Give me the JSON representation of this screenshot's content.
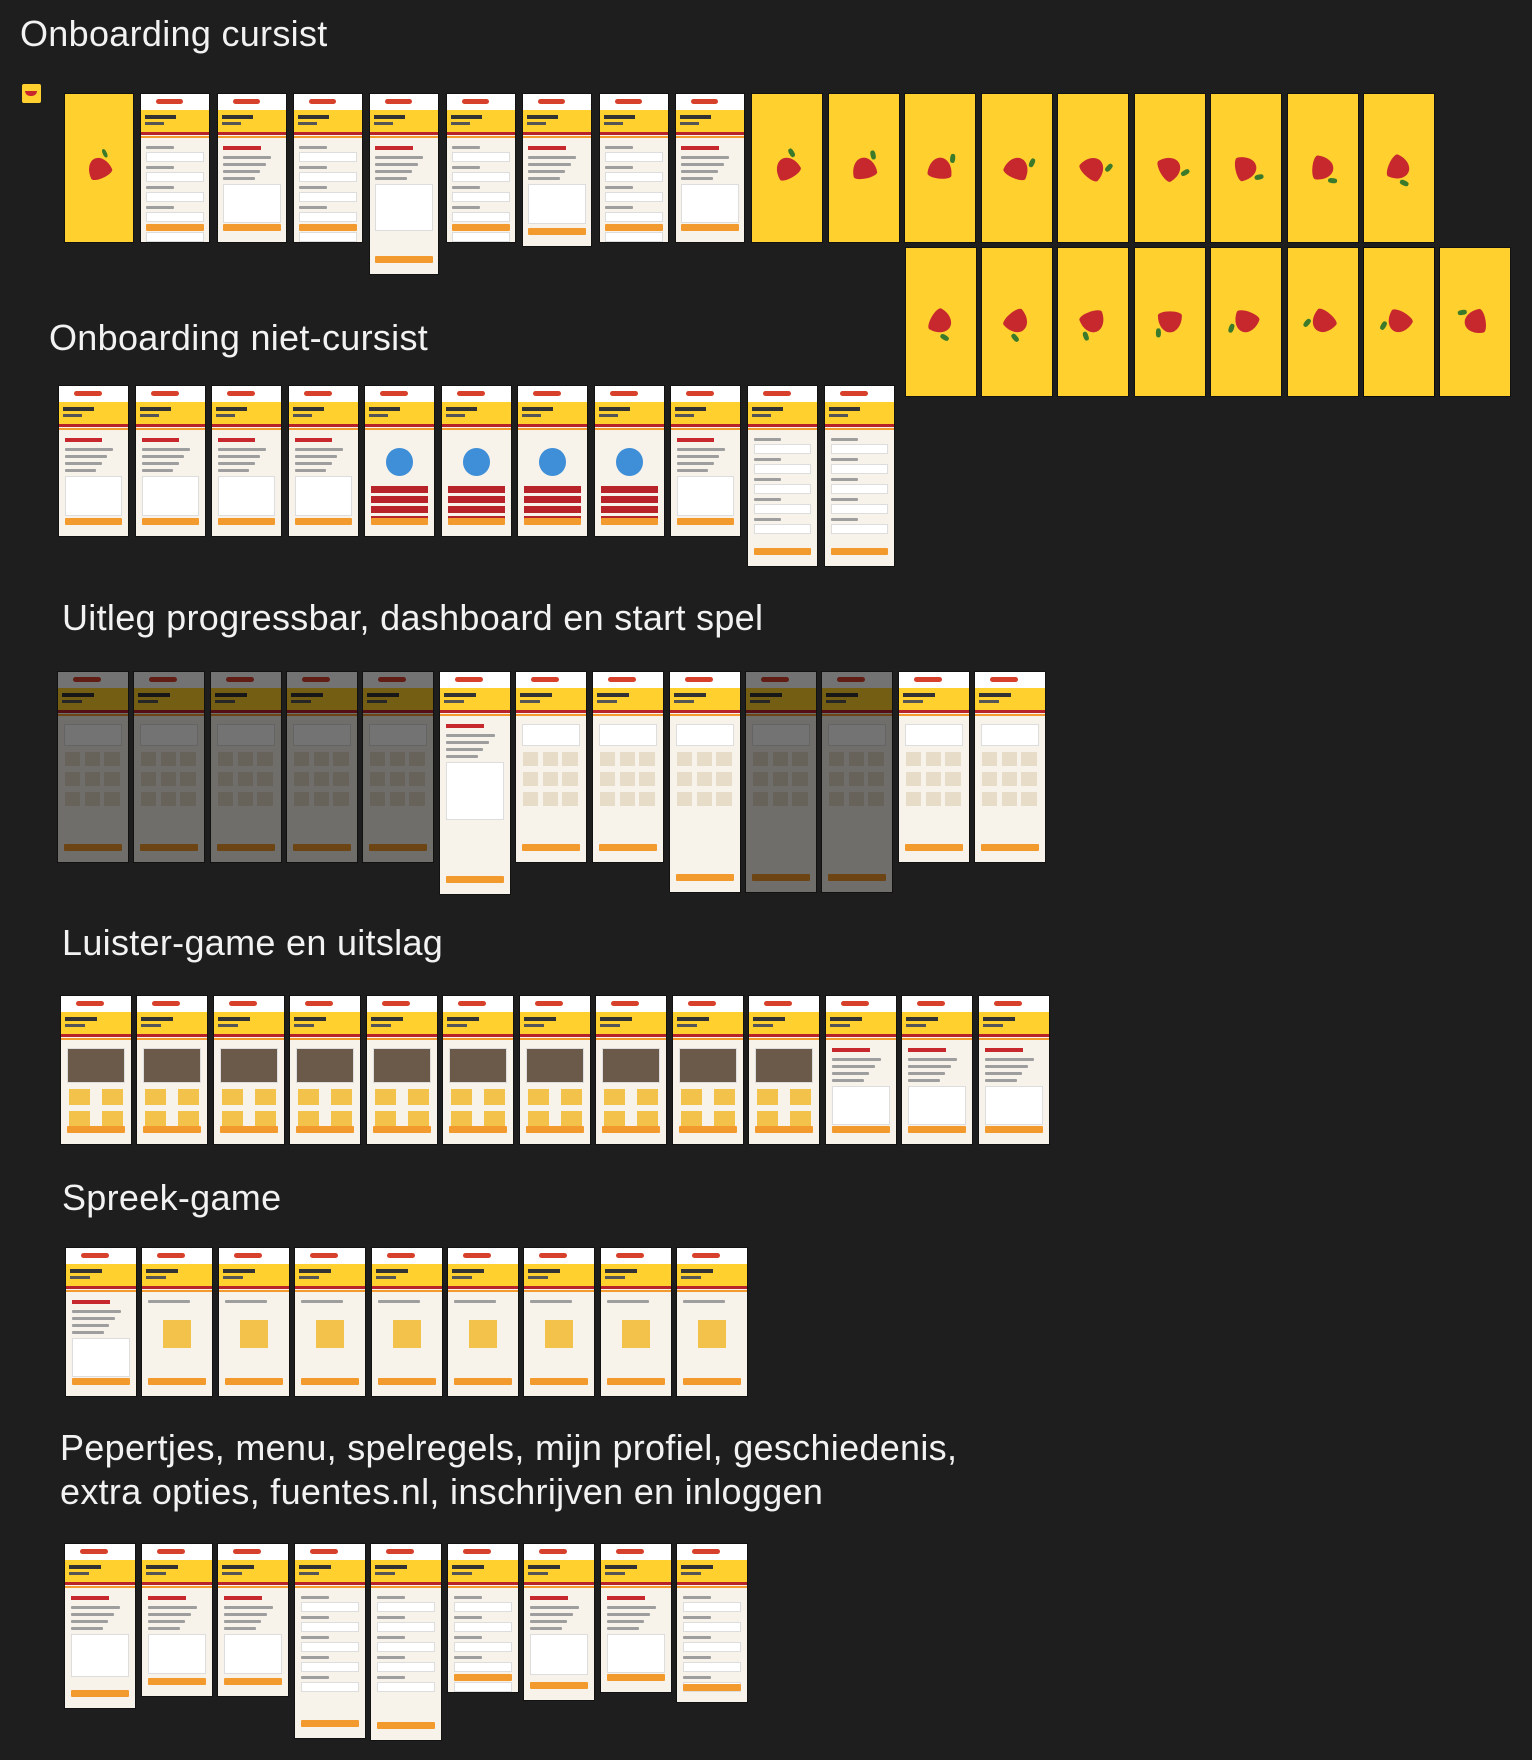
{
  "sections": {
    "onboarding_cursist": "Onboarding cursist",
    "onboarding_niet_cursist": "Onboarding niet-cursist",
    "uitleg": "Uitleg progressbar, dashboard en start spel",
    "luister": "Luister-game en uitslag",
    "spreek": "Spreek-game",
    "overig_line1": "Pepertjes, menu, spelregels, mijn profiel, geschiedenis,",
    "overig_line2": "extra opties, fuentes.nl, inschrijven en inloggen"
  },
  "colors": {
    "canvas": "#1e1e1e",
    "brand_yellow": "#ffd02e",
    "brand_red": "#b8232a",
    "brand_orange": "#f29a2e",
    "screen_bg": "#f7f3ea"
  },
  "icons": [
    "chili-pepper-icon",
    "chili-pepper-splash-icon"
  ]
}
